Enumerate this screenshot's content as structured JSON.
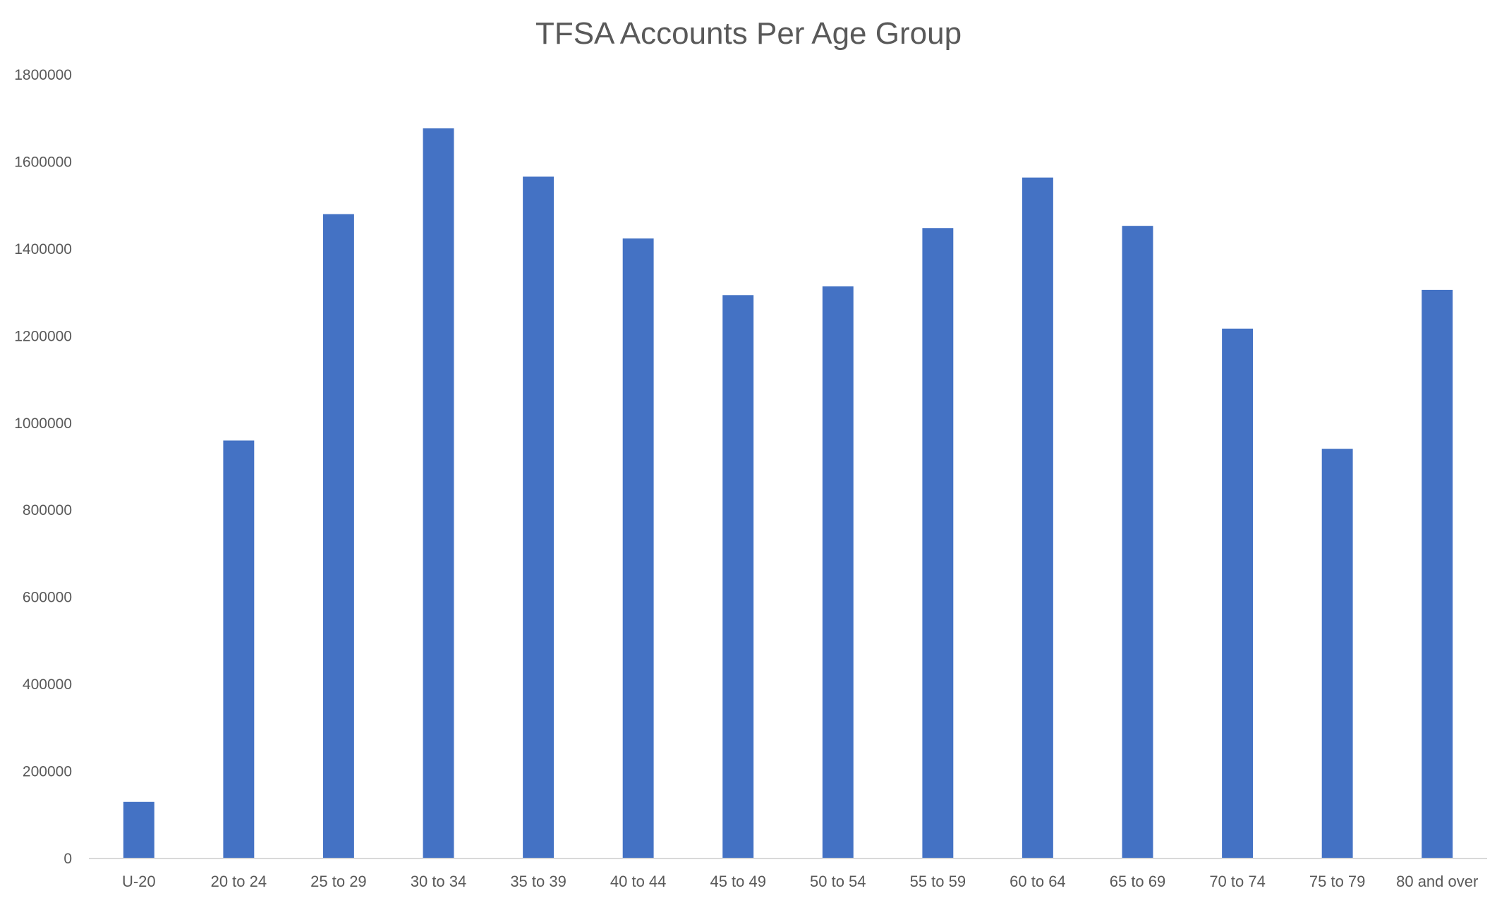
{
  "chart_data": {
    "type": "bar",
    "title": "TFSA Accounts Per Age Group",
    "xlabel": "",
    "ylabel": "",
    "categories": [
      "U-20",
      "20 to 24",
      "25 to 29",
      "30 to 34",
      "35 to 39",
      "40 to 44",
      "45 to 49",
      "50 to 54",
      "55 to 59",
      "60 to 64",
      "65 to 69",
      "70 to 74",
      "75 to 79",
      "80 and over"
    ],
    "series": [
      {
        "name": "TFSA Accounts",
        "values": [
          130000,
          960000,
          1480000,
          1677000,
          1566000,
          1424000,
          1294000,
          1314000,
          1448000,
          1564000,
          1453000,
          1217000,
          941000,
          1306000
        ]
      }
    ],
    "ylim": [
      0,
      1800000
    ],
    "yticks": [
      "0",
      "200000",
      "400000",
      "600000",
      "800000",
      "1000000",
      "1200000",
      "1400000",
      "1600000",
      "1800000"
    ],
    "grid": false,
    "legend": "none",
    "colors": {
      "bar": "#4472C4",
      "axis": "#D9D9D9",
      "text": "#595959"
    }
  }
}
